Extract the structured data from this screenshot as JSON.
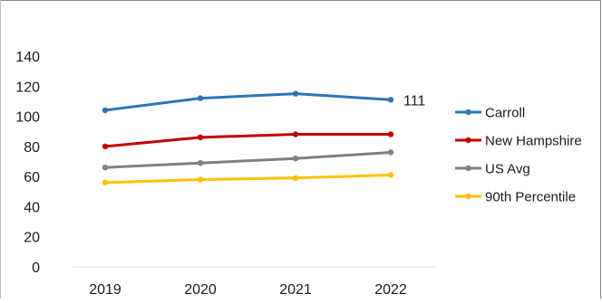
{
  "chart_data": {
    "type": "line",
    "title": "",
    "xlabel": "",
    "ylabel": "",
    "categories": [
      "2019",
      "2020",
      "2021",
      "2022"
    ],
    "ylim": [
      0,
      140
    ],
    "yticks": [
      "0",
      "20",
      "40",
      "60",
      "80",
      "100",
      "120",
      "140"
    ],
    "grid": false,
    "legend_position": "right",
    "series": [
      {
        "name": "Carroll",
        "color": "#2e75b6",
        "values": [
          104,
          112,
          115,
          111
        ]
      },
      {
        "name": "New Hampshire",
        "color": "#c00000",
        "values": [
          80,
          86,
          88,
          88
        ]
      },
      {
        "name": "US Avg",
        "color": "#7f7f7f",
        "values": [
          66,
          69,
          72,
          76
        ]
      },
      {
        "name": "90th Percentile",
        "color": "#ffc000",
        "values": [
          56,
          58,
          59,
          61
        ]
      }
    ],
    "annotations": [
      {
        "series": "Carroll",
        "category": "2022",
        "text": "111"
      }
    ]
  }
}
